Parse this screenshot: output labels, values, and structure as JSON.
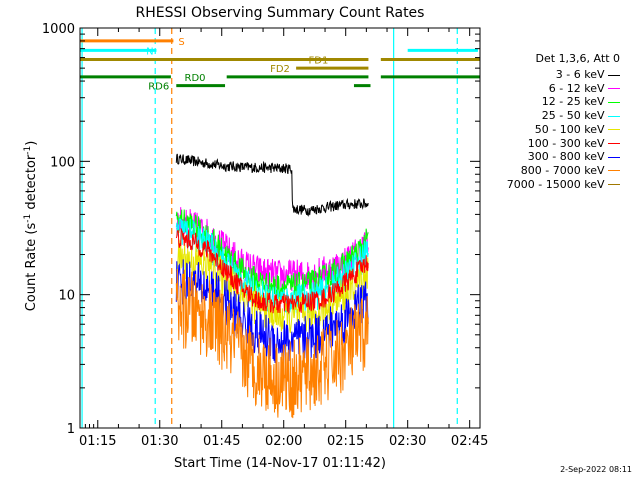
{
  "chart_data": {
    "type": "line",
    "title": "RHESSI Observing Summary Count Rates",
    "xlabel": "Start Time (14-Nov-17 01:11:42)",
    "ylabel_main": "Count Rate (s",
    "ylabel_sup1": "-1",
    "ylabel_mid": " detector",
    "ylabel_sup2": "-1",
    "ylabel_end": ")",
    "x_unit": "minutes since 01:00 UT",
    "xlim": [
      70.7,
      167.5
    ],
    "ylim": [
      1,
      1000
    ],
    "y_scale": "log",
    "x_ticks": [
      {
        "label": "01:15",
        "value": 75
      },
      {
        "label": "01:30",
        "value": 90
      },
      {
        "label": "01:45",
        "value": 105
      },
      {
        "label": "02:00",
        "value": 120
      },
      {
        "label": "02:15",
        "value": 135
      },
      {
        "label": "02:30",
        "value": 150
      },
      {
        "label": "02:45",
        "value": 165
      }
    ],
    "y_ticks": [
      {
        "label": "1",
        "value": 1
      },
      {
        "label": "10",
        "value": 10
      },
      {
        "label": "100",
        "value": 100
      },
      {
        "label": "1000",
        "value": 1000
      }
    ],
    "legend_title": "Det 1,3,6, Att 0",
    "legend_position": "right",
    "series": [
      {
        "name": "3 - 6 keV",
        "color": "#000000",
        "x": [
          94.0,
          100.0,
          106.0,
          112.0,
          118.0,
          122.0,
          122.1,
          126.0,
          130.0,
          134.0,
          138.0,
          140.5
        ],
        "y": [
          105,
          98,
          92,
          90,
          89,
          88,
          44,
          43,
          45,
          47,
          48,
          48
        ],
        "noise": 0.04
      },
      {
        "name": "6 - 12 keV",
        "color": "#ff00ff",
        "x": [
          94.0,
          98.0,
          102.0,
          106.0,
          110.0,
          114.0,
          118.0,
          122.0,
          126.0,
          130.0,
          134.0,
          138.0,
          140.5
        ],
        "y": [
          36,
          33,
          28,
          22,
          17,
          15,
          14,
          14,
          14,
          15,
          17,
          21,
          25
        ],
        "noise": 0.12
      },
      {
        "name": "12 - 25 keV",
        "color": "#00ff00",
        "x": [
          94.0,
          98.0,
          102.0,
          106.0,
          110.0,
          114.0,
          118.0,
          122.0,
          126.0,
          130.0,
          134.0,
          138.0,
          140.5
        ],
        "y": [
          37,
          33,
          27,
          20,
          15,
          12.5,
          11.5,
          11.5,
          12,
          13.5,
          16,
          21,
          26
        ],
        "noise": 0.1
      },
      {
        "name": "25 - 50 keV",
        "color": "#00ffff",
        "x": [
          94.0,
          98.0,
          102.0,
          106.0,
          110.0,
          114.0,
          118.0,
          122.0,
          126.0,
          130.0,
          134.0,
          138.0,
          140.5
        ],
        "y": [
          31,
          28,
          23,
          17,
          12.5,
          10,
          9.2,
          9.0,
          9.5,
          10.5,
          13,
          17,
          21
        ],
        "noise": 0.12
      },
      {
        "name": "50 - 100 keV",
        "color": "#e6e600",
        "x": [
          94.0,
          98.0,
          102.0,
          106.0,
          110.0,
          114.0,
          118.0,
          122.0,
          126.0,
          130.0,
          134.0,
          138.0,
          140.5
        ],
        "y": [
          19,
          18,
          16,
          13,
          10,
          8,
          7,
          6.8,
          7,
          7.8,
          9.5,
          12.5,
          15
        ],
        "noise": 0.15
      },
      {
        "name": "100 - 300 keV",
        "color": "#ff0000",
        "x": [
          94.0,
          98.0,
          102.0,
          106.0,
          110.0,
          114.0,
          118.0,
          122.0,
          126.0,
          130.0,
          134.0,
          138.0,
          140.5
        ],
        "y": [
          27,
          25,
          21,
          15,
          11,
          9,
          8.5,
          8.5,
          8.8,
          9.5,
          11.5,
          15,
          18
        ],
        "noise": 0.08
      },
      {
        "name": "300 - 800 keV",
        "color": "#0000ff",
        "x": [
          94.0,
          98.0,
          102.0,
          106.0,
          110.0,
          114.0,
          118.0,
          122.0,
          126.0,
          130.0,
          134.0,
          138.0,
          140.5
        ],
        "y": [
          13,
          12,
          11,
          8.5,
          6.5,
          5,
          4.5,
          4.4,
          4.6,
          5.2,
          6.3,
          8,
          9
        ],
        "noise": 0.18
      },
      {
        "name": "800 - 7000 keV",
        "color": "#ff8000",
        "x": [
          94.0,
          98.0,
          102.0,
          106.0,
          110.0,
          114.0,
          118.0,
          122.0,
          126.0,
          130.0,
          134.0,
          138.0,
          140.5
        ],
        "y": [
          8,
          7.5,
          6.5,
          5,
          3.5,
          2.8,
          2.4,
          2.3,
          2.5,
          2.9,
          3.6,
          4.6,
          5.5
        ],
        "noise": 0.3
      },
      {
        "name": "7000 - 15000 keV",
        "color": "#a07800",
        "x": [],
        "y": [],
        "noise": 0
      }
    ],
    "flags": [
      {
        "label": "S",
        "color": "#ff8000",
        "y": 800,
        "segments": [
          [
            70.7,
            93.3
          ]
        ],
        "label_x": 94.5,
        "anchor": "start"
      },
      {
        "label": "N",
        "color": "#00ffff",
        "y": 680,
        "segments": [
          [
            70.7,
            89.2
          ],
          [
            150.0,
            167.0
          ]
        ],
        "label_x": 88.5,
        "anchor": "end"
      },
      {
        "label": "FD1",
        "color": "#a08800",
        "y": 580,
        "segments": [
          [
            70.7,
            140.5
          ],
          [
            143.5,
            167.5
          ]
        ],
        "label_x": 126.0,
        "anchor": "start"
      },
      {
        "label": "FD2",
        "color": "#a08800",
        "y": 500,
        "segments": [
          [
            123.0,
            140.5
          ]
        ],
        "label_x": 121.5,
        "anchor": "end"
      },
      {
        "label": "RD0",
        "color": "#008000",
        "y": 430,
        "segments": [
          [
            70.7,
            92.7
          ],
          [
            106.2,
            140.5
          ],
          [
            143.5,
            167.5
          ]
        ],
        "label_x": 96.0,
        "anchor": "start"
      },
      {
        "label": "RD6",
        "color": "#008000",
        "y": 370,
        "segments": [
          [
            94.0,
            105.8
          ],
          [
            137.0,
            141.0
          ]
        ],
        "label_x": 92.3,
        "anchor": "end"
      }
    ],
    "vlines": [
      {
        "x": 71.2,
        "color": "#00ffff",
        "style": "solid"
      },
      {
        "x": 88.9,
        "color": "#00ffff",
        "style": "dashed"
      },
      {
        "x": 92.9,
        "color": "#ff8000",
        "style": "dashed"
      },
      {
        "x": 146.6,
        "color": "#00ffff",
        "style": "solid"
      },
      {
        "x": 162.0,
        "color": "#00ffff",
        "style": "dashed"
      }
    ]
  },
  "footer": {
    "date_stamp": "2-Sep-2022 08:11"
  }
}
